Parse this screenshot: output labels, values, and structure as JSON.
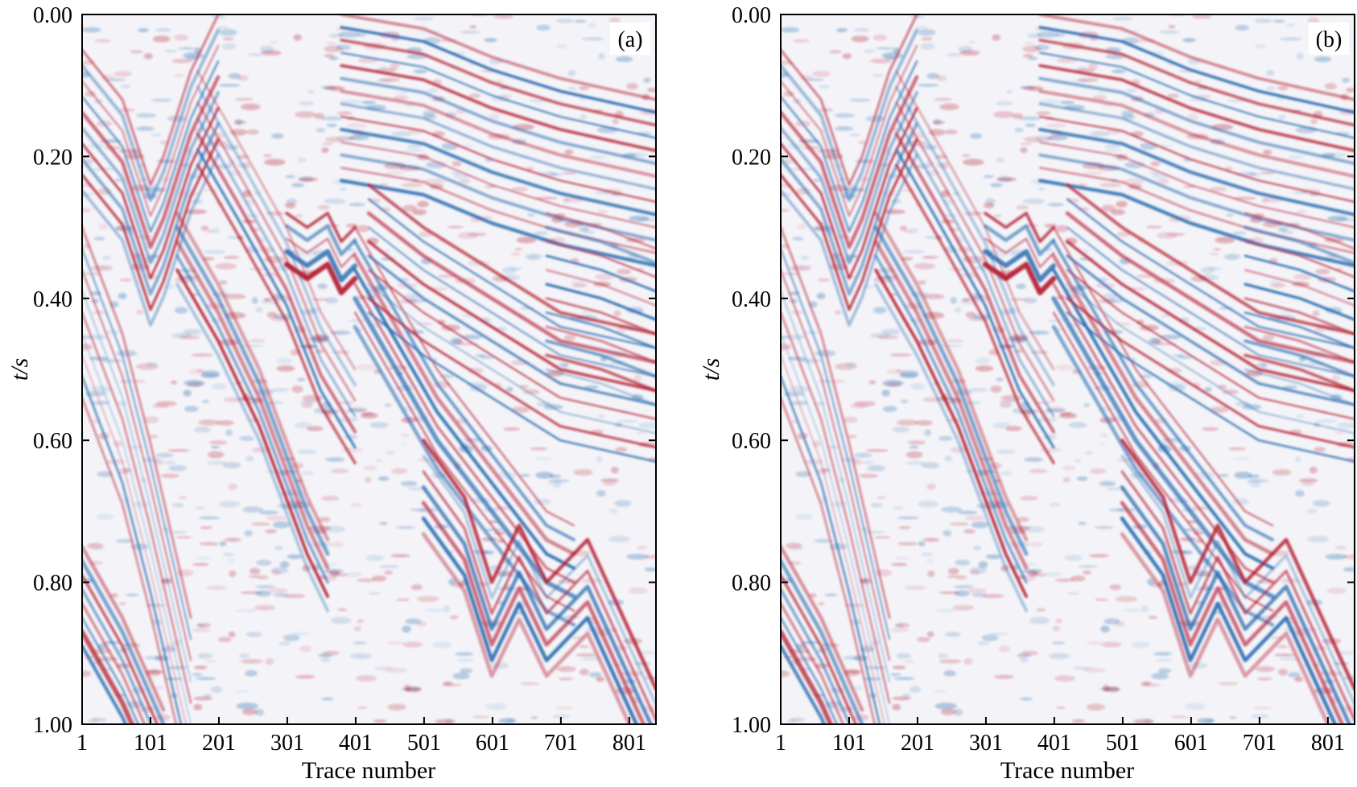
{
  "chart_data": [
    {
      "type": "heatmap",
      "panel_label": "(a)",
      "title": "",
      "xlabel": "Trace number",
      "ylabel": "t/s",
      "xlim": [
        1,
        840
      ],
      "ylim": [
        0.0,
        1.0
      ],
      "y_inverted": true,
      "x_ticks": [
        1,
        101,
        201,
        301,
        401,
        501,
        601,
        701,
        801
      ],
      "x_tick_labels": [
        "1",
        "101",
        "201",
        "301",
        "401",
        "501",
        "601",
        "701",
        "801"
      ],
      "y_ticks": [
        0.0,
        0.2,
        0.4,
        0.6,
        0.8,
        1.0
      ],
      "y_tick_labels": [
        "0.00",
        "0.20",
        "0.40",
        "0.60",
        "0.80",
        "1.00"
      ],
      "colormap": [
        "#b2182b",
        "#ffffff",
        "#2166ac"
      ],
      "content": "seismic section (amplitude)"
    },
    {
      "type": "heatmap",
      "panel_label": "(b)",
      "title": "",
      "xlabel": "Trace number",
      "ylabel": "t/s",
      "xlim": [
        1,
        840
      ],
      "ylim": [
        0.0,
        1.0
      ],
      "y_inverted": true,
      "x_ticks": [
        1,
        101,
        201,
        301,
        401,
        501,
        601,
        701,
        801
      ],
      "x_tick_labels": [
        "1",
        "101",
        "201",
        "301",
        "401",
        "501",
        "601",
        "701",
        "801"
      ],
      "y_ticks": [
        0.0,
        0.2,
        0.4,
        0.6,
        0.8,
        1.0
      ],
      "y_tick_labels": [
        "0.00",
        "0.20",
        "0.40",
        "0.60",
        "0.80",
        "1.00"
      ],
      "colormap": [
        "#b2182b",
        "#ffffff",
        "#2166ac"
      ],
      "content": "seismic section (amplitude)"
    }
  ]
}
